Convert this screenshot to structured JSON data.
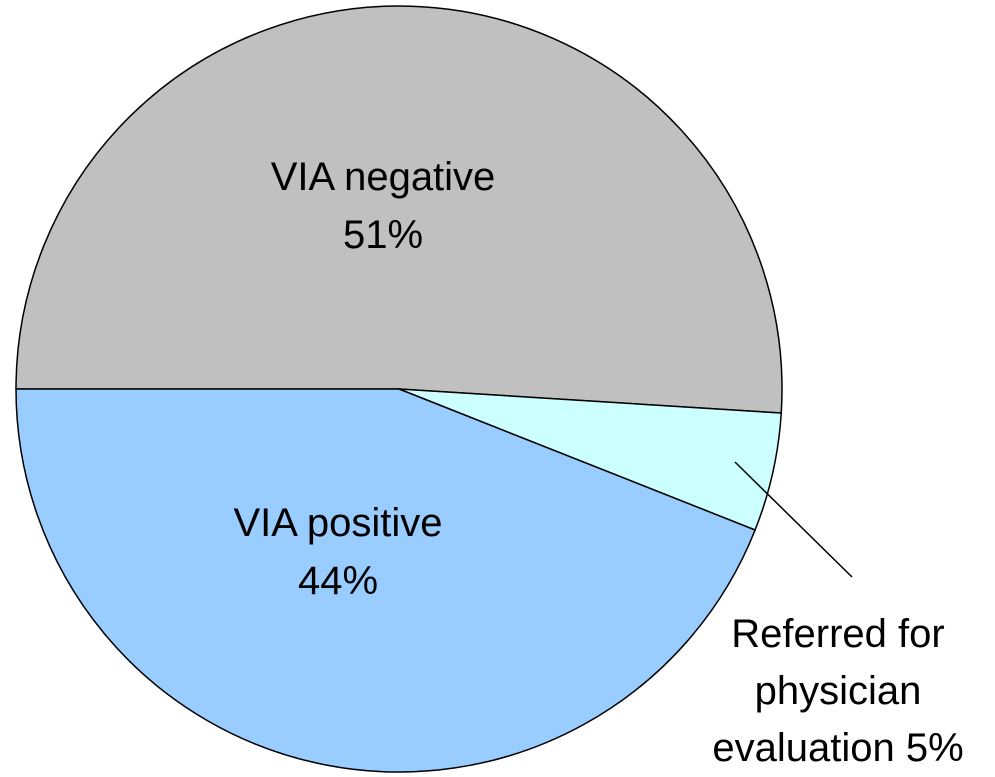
{
  "chart_data": {
    "type": "pie",
    "categories": [
      "VIA negative",
      "Referred for physician evaluation",
      "VIA positive"
    ],
    "values": [
      51,
      5,
      44
    ],
    "value_labels": [
      "51%",
      "5%",
      "44%"
    ],
    "colors": [
      "#c0c0c0",
      "#ccffff",
      "#99ccff"
    ]
  }
}
